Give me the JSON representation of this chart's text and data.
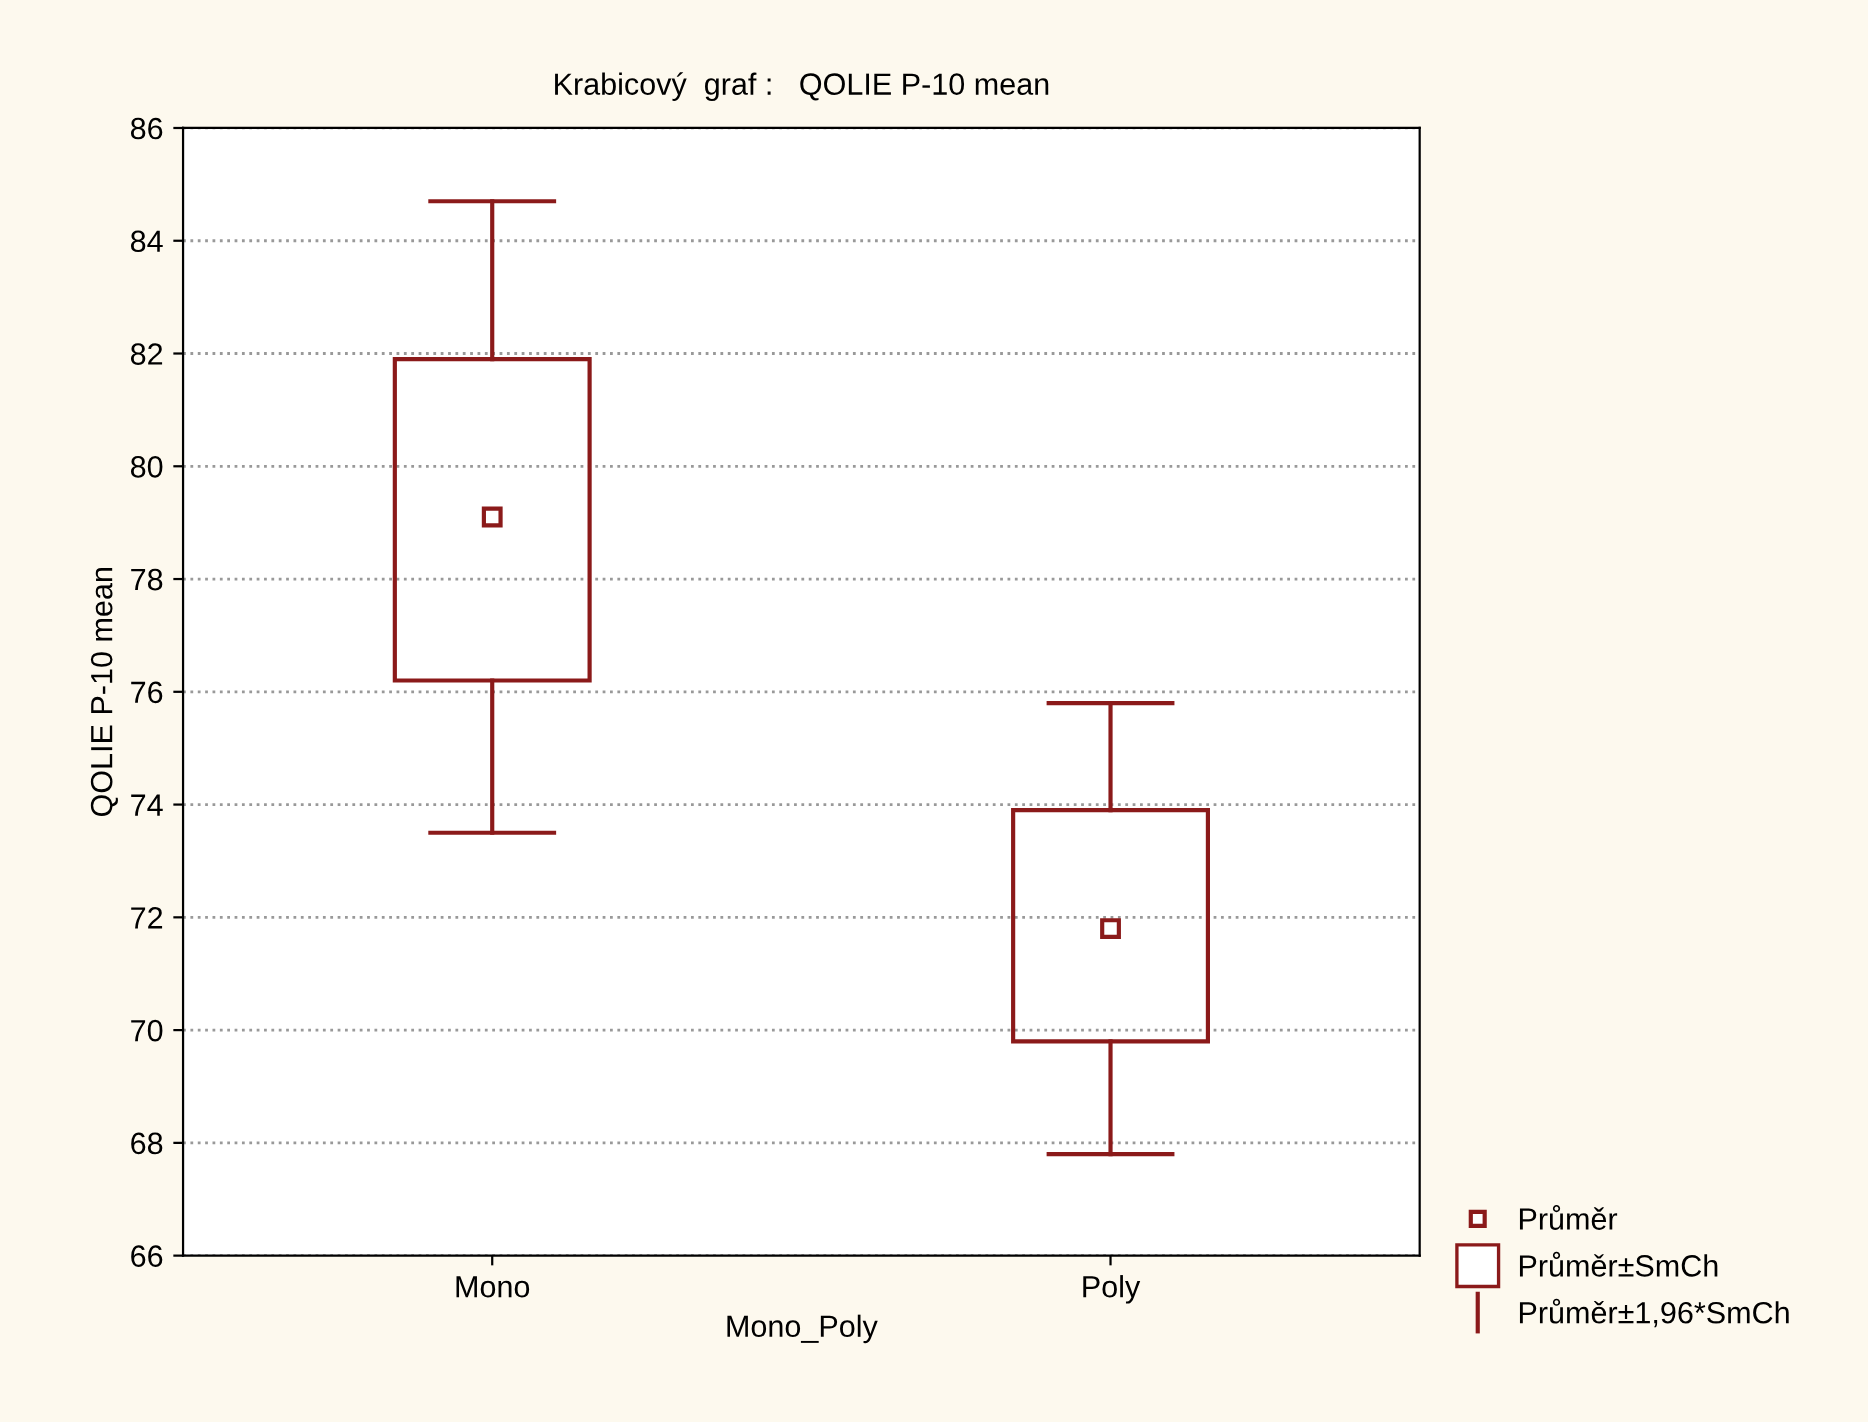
{
  "chart_data": {
    "type": "box",
    "title": "Krabicový  graf :   QOLIE P-10 mean",
    "xlabel": "Mono_Poly",
    "ylabel": "QOLIE P-10 mean",
    "categories": [
      "Mono",
      "Poly"
    ],
    "boxes": [
      {
        "low": 73.5,
        "q1": 76.2,
        "median": 79.1,
        "q3": 81.9,
        "high": 84.7
      },
      {
        "low": 67.8,
        "q1": 69.8,
        "median": 71.8,
        "q3": 73.9,
        "high": 75.8
      }
    ],
    "color": "#8b1a1a",
    "ylim": [
      66,
      86
    ],
    "yticks": [
      66,
      68,
      70,
      72,
      74,
      76,
      78,
      80,
      82,
      84,
      86
    ],
    "grid": "y",
    "marker": "square",
    "annotations": [
      "Průměr",
      "Průměr±SmCh",
      "Průměr±1,96*SmCh"
    ]
  }
}
